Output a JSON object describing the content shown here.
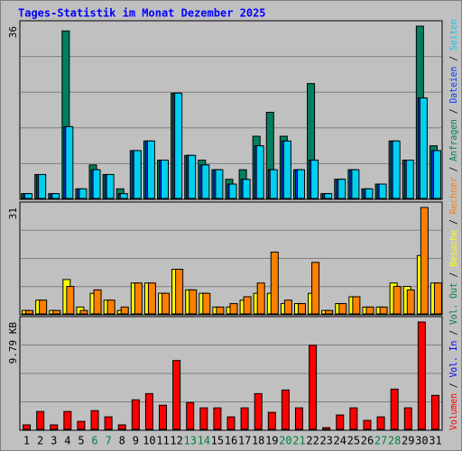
{
  "title": "Tages-Statistik im Monat Dezember 2025",
  "chart_data": [
    {
      "type": "bar",
      "ylim": [
        0,
        36
      ],
      "yticks": [
        36
      ],
      "series": [
        {
          "name": "Anfragen",
          "color": "#008060",
          "values": [
            1,
            5,
            1,
            35,
            2,
            7,
            5,
            2,
            10,
            12,
            8,
            22,
            9,
            8,
            6,
            4,
            6,
            13,
            18,
            13,
            6,
            24,
            1,
            4,
            6,
            2,
            3,
            12,
            8,
            36,
            11
          ]
        },
        {
          "name": "Dateien",
          "color": "#0040ff",
          "values": [
            1,
            5,
            1,
            15,
            2,
            6,
            5,
            1,
            10,
            12,
            8,
            22,
            9,
            7,
            6,
            3,
            4,
            11,
            6,
            12,
            6,
            8,
            1,
            4,
            6,
            2,
            3,
            12,
            8,
            21,
            10
          ]
        },
        {
          "name": "Seiten",
          "color": "#00d0f0",
          "values": [
            1,
            5,
            1,
            15,
            2,
            6,
            5,
            1,
            10,
            12,
            8,
            22,
            9,
            7,
            6,
            3,
            4,
            11,
            6,
            12,
            6,
            8,
            1,
            4,
            6,
            2,
            3,
            12,
            8,
            21,
            10
          ]
        }
      ]
    },
    {
      "type": "bar",
      "ylim": [
        0,
        31
      ],
      "yticks": [
        31
      ],
      "series": [
        {
          "name": "Besuche",
          "color": "#ffff00",
          "values": [
            1,
            4,
            1,
            10,
            2,
            6,
            4,
            1,
            9,
            9,
            6,
            13,
            7,
            6,
            2,
            2,
            4,
            6,
            6,
            3,
            3,
            6,
            1,
            3,
            5,
            2,
            2,
            9,
            8,
            17,
            9
          ]
        },
        {
          "name": "Rechner",
          "color": "#ff8000",
          "values": [
            1,
            4,
            1,
            8,
            1,
            7,
            4,
            2,
            9,
            9,
            6,
            13,
            7,
            6,
            2,
            3,
            5,
            9,
            18,
            4,
            3,
            15,
            1,
            3,
            5,
            2,
            2,
            8,
            7,
            31,
            9
          ]
        }
      ]
    },
    {
      "type": "bar",
      "ylim": [
        0,
        9.79
      ],
      "yticks": [
        {
          "value": 9.79,
          "label": "9.79 KB"
        }
      ],
      "categories": [
        1,
        2,
        3,
        4,
        5,
        6,
        7,
        8,
        9,
        10,
        11,
        12,
        13,
        14,
        15,
        16,
        17,
        18,
        19,
        20,
        21,
        22,
        23,
        24,
        25,
        26,
        27,
        28,
        29,
        30,
        31
      ],
      "weekends": [
        6,
        7,
        13,
        14,
        20,
        21,
        27,
        28
      ],
      "weekend_color": "#008040",
      "series": [
        {
          "name": "Volumen",
          "color": "#ff0000",
          "values": [
            0.41,
            1.63,
            0.41,
            1.63,
            0.73,
            1.71,
            1.14,
            0.41,
            2.69,
            3.26,
            2.2,
            6.28,
            2.45,
            1.96,
            1.96,
            1.14,
            1.96,
            3.26,
            1.55,
            3.59,
            1.96,
            7.67,
            0.16,
            1.31,
            1.96,
            0.82,
            1.14,
            3.67,
            1.96,
            9.79,
            3.1
          ]
        },
        {
          "name": "Vol. In",
          "color": "#0000ff"
        },
        {
          "name": "Vol. Out",
          "color": "#008040"
        }
      ]
    }
  ]
}
